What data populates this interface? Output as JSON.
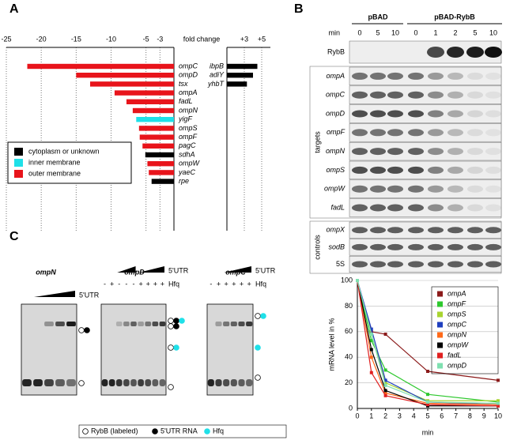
{
  "panel_labels": [
    "A",
    "B",
    "C"
  ],
  "chart_data": [
    {
      "type": "hbar",
      "xlabel": "fold change",
      "categories": [
        "ompC",
        "ompD",
        "tsx",
        "ompA",
        "fadL",
        "ompN",
        "yigF",
        "ompS",
        "ompF",
        "pagC",
        "sdhA",
        "ompW",
        "yaeC",
        "rpe"
      ],
      "values": [
        -22,
        -15,
        -13,
        -9.5,
        -7.8,
        -6.9,
        -6.4,
        -6,
        -5.9,
        -5.5,
        -5.1,
        -4.8,
        -4.6,
        -4.2
      ],
      "colors": [
        "#e8141b",
        "#e8141b",
        "#e8141b",
        "#e8141b",
        "#e8141b",
        "#e8141b",
        "#1fe0e8",
        "#e8141b",
        "#e8141b",
        "#e8141b",
        "#000000",
        "#e8141b",
        "#e8141b",
        "#000000"
      ],
      "xlim": [
        -25,
        -1
      ],
      "xticks": [
        -25,
        -20,
        -15,
        -10,
        -5,
        -3
      ],
      "grid": true,
      "legend": [
        {
          "name": "cytoplasm or unknown",
          "color": "#000000"
        },
        {
          "name": "inner membrane",
          "color": "#1fe0e8"
        },
        {
          "name": "outer membrane",
          "color": "#e8141b"
        }
      ]
    },
    {
      "type": "hbar",
      "categories": [
        "ibpB",
        "adiY",
        "yhbT"
      ],
      "values": [
        4.5,
        4,
        3.3
      ],
      "color": "#000000",
      "xlim": [
        1,
        6
      ],
      "xticks": [
        {
          "value": 3,
          "label": "+3"
        },
        {
          "value": 5,
          "label": "+5"
        }
      ],
      "grid": true
    },
    {
      "type": "line",
      "xlabel": "min",
      "ylabel": "mRNA level in %",
      "x": [
        0,
        1,
        2,
        5,
        10
      ],
      "series": [
        {
          "name": "ompA",
          "color": "#8b1a1a",
          "values": [
            100,
            60,
            58,
            29,
            22
          ]
        },
        {
          "name": "ompF",
          "color": "#2ec82e",
          "values": [
            100,
            53,
            30,
            11,
            5
          ]
        },
        {
          "name": "ompS",
          "color": "#a8d430",
          "values": [
            100,
            58,
            20,
            6,
            6
          ]
        },
        {
          "name": "ompC",
          "color": "#1f3fbf",
          "values": [
            100,
            62,
            22,
            5,
            3
          ]
        },
        {
          "name": "ompN",
          "color": "#ff6a1a",
          "values": [
            100,
            40,
            12,
            4,
            3
          ]
        },
        {
          "name": "ompW",
          "color": "#000000",
          "values": [
            100,
            46,
            14,
            2,
            2
          ]
        },
        {
          "name": "fadL",
          "color": "#e02020",
          "values": [
            100,
            28,
            10,
            3,
            2
          ]
        },
        {
          "name": "ompD",
          "color": "#7fe0b0",
          "values": [
            100,
            58,
            18,
            5,
            4
          ]
        }
      ],
      "xlim": [
        0,
        10
      ],
      "xticks": [
        0,
        1,
        2,
        3,
        4,
        5,
        6,
        7,
        8,
        9,
        10
      ],
      "ylim": [
        0,
        100
      ],
      "yticks": [
        0,
        20,
        40,
        60,
        80,
        100
      ],
      "grid": true
    }
  ],
  "blot": {
    "plasmids": [
      "pBAD",
      "pBAD-RybB"
    ],
    "min_label": "min",
    "lanes": [
      0,
      5,
      10,
      0,
      1,
      2,
      5,
      10
    ],
    "probe": "RybB",
    "targets": {
      "label": "targets",
      "rows": [
        "ompA",
        "ompC",
        "ompD",
        "ompF",
        "ompN",
        "ompS",
        "ompW",
        "fadL"
      ]
    },
    "controls": {
      "label": "controls",
      "rows": [
        "ompX",
        "sodB",
        "5S"
      ]
    }
  },
  "gels": [
    {
      "title": "ompN",
      "titration": "5'UTR"
    },
    {
      "title": "ompD",
      "titration": "5'UTR",
      "hfq_label": "Hfq",
      "hfq": [
        "-",
        "+",
        "-",
        "-",
        "-",
        "+",
        "+",
        "+",
        "+"
      ]
    },
    {
      "title": "ompC",
      "titration": "5'UTR",
      "hfq_label": "Hfq",
      "hfq": [
        "-",
        "+",
        "+",
        "+",
        "+",
        "+"
      ]
    }
  ],
  "gel_legend": [
    "RybB (labeled)",
    "5'UTR RNA",
    "Hfq"
  ]
}
